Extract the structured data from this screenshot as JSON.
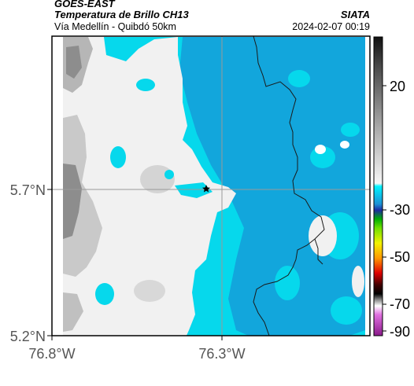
{
  "header": {
    "satellite": "GOES-EAST",
    "product": "Temperatura de Brillo CH13",
    "region": "Vía Medellín - Quibdó 50km",
    "agency": "SIATA",
    "datetime": "2024-02-07 00:19"
  },
  "map": {
    "lat_ticks": [
      "5.7°N",
      "5.2°N"
    ],
    "lon_ticks": [
      "76.8°W",
      "76.3°W"
    ],
    "marker": "star",
    "colors": {
      "cold_cloud": "#06d8ec",
      "deep_cloud": "#12a6dc",
      "warm_light": "#f1f1f1",
      "warm_mid": "#c9c9c9",
      "warm_dark": "#8d8d8d"
    }
  },
  "colorbar": {
    "labels": [
      "20",
      "-30",
      "-50",
      "-70",
      "-90"
    ]
  }
}
